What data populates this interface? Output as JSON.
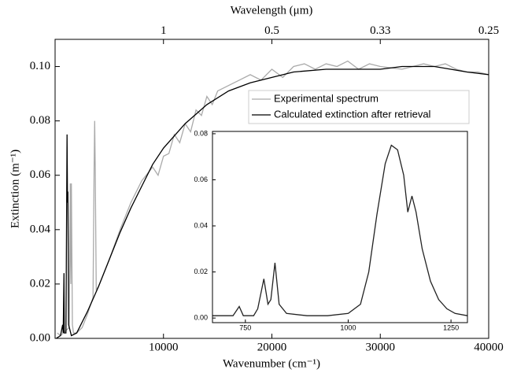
{
  "chart_data": [
    {
      "type": "line",
      "xlabel": "Wavenumber (cm⁻¹)",
      "ylabel": "Extinction (m⁻¹)",
      "x2label": "Wavelength (μm)",
      "xlim": [
        0,
        40000
      ],
      "ylim": [
        0,
        0.11
      ],
      "xticks": [
        10000,
        20000,
        30000,
        40000
      ],
      "x2ticks": [
        {
          "value": 10000,
          "label": "1"
        },
        {
          "value": 20000,
          "label": "0.5"
        },
        {
          "value": 30000,
          "label": "0.33"
        },
        {
          "value": 40000,
          "label": "0.25"
        }
      ],
      "yticks": [
        {
          "value": 0,
          "label": "0.00"
        },
        0.02,
        0.04,
        0.06,
        0.08,
        {
          "value": 0.1,
          "label": "0.10"
        }
      ],
      "legend": "upper right",
      "series": [
        {
          "name": "Experimental spectrum",
          "color": "#aaaaaa",
          "x": [
            200,
            500,
            1300,
            1400,
            1450,
            1500,
            1600,
            1700,
            2000,
            2500,
            3000,
            3500,
            3600,
            3650,
            3700,
            3800,
            4000,
            5000,
            6000,
            7000,
            8000,
            9000,
            9500,
            10000,
            10500,
            11000,
            11500,
            12000,
            12500,
            13000,
            13500,
            14000,
            14500,
            15000,
            16000,
            17000,
            18000,
            19000,
            20000,
            21000,
            22000,
            23000,
            24000,
            25000,
            26000,
            27000,
            28000,
            29000,
            30000,
            32000,
            34000,
            35000,
            36000,
            37000,
            38000,
            39000,
            40000
          ],
          "values": [
            0.002,
            0.001,
            0.004,
            0.057,
            0.02,
            0.057,
            0.005,
            0.002,
            0.002,
            0.004,
            0.009,
            0.015,
            0.063,
            0.08,
            0.063,
            0.018,
            0.019,
            0.029,
            0.04,
            0.05,
            0.058,
            0.063,
            0.06,
            0.067,
            0.068,
            0.075,
            0.072,
            0.079,
            0.076,
            0.084,
            0.082,
            0.089,
            0.086,
            0.091,
            0.093,
            0.095,
            0.097,
            0.095,
            0.099,
            0.096,
            0.1,
            0.101,
            0.099,
            0.101,
            0.1,
            0.102,
            0.099,
            0.101,
            0.1,
            0.099,
            0.101,
            0.1,
            0.101,
            0.099,
            0.098,
            0.098,
            0.097
          ]
        },
        {
          "name": "Calculated extinction after retrieval",
          "color": "#000000",
          "x": [
            100,
            500,
            700,
            750,
            820,
            850,
            1000,
            1100,
            1150,
            1180,
            1250,
            1500,
            2000,
            3000,
            4000,
            5000,
            6000,
            7000,
            8000,
            9000,
            10000,
            12000,
            14000,
            16000,
            18000,
            20000,
            22000,
            25000,
            28000,
            30000,
            32000,
            35000,
            38000,
            40000
          ],
          "values": [
            0,
            0.001,
            0.005,
            0.002,
            0.024,
            0.002,
            0.002,
            0.075,
            0.05,
            0.054,
            0.005,
            0.001,
            0.002,
            0.01,
            0.019,
            0.029,
            0.039,
            0.048,
            0.056,
            0.064,
            0.07,
            0.079,
            0.086,
            0.091,
            0.094,
            0.096,
            0.098,
            0.099,
            0.099,
            0.099,
            0.1,
            0.1,
            0.098,
            0.097
          ]
        }
      ]
    },
    {
      "type": "line",
      "xlim": [
        670,
        1290
      ],
      "ylim": [
        -0.002,
        0.081
      ],
      "xticks": [
        750,
        1000,
        1250
      ],
      "yticks": [
        {
          "value": 0,
          "label": "0.00"
        },
        0.02,
        0.04,
        0.06,
        0.08
      ],
      "series": [
        {
          "color": "#222222",
          "x": [
            670,
            700,
            720,
            735,
            745,
            770,
            780,
            795,
            805,
            812,
            822,
            832,
            850,
            900,
            950,
            1000,
            1030,
            1050,
            1070,
            1090,
            1105,
            1120,
            1135,
            1145,
            1155,
            1165,
            1180,
            1200,
            1220,
            1240,
            1260,
            1290
          ],
          "values": [
            0.001,
            0.001,
            0.001,
            0.005,
            0.001,
            0.001,
            0.004,
            0.017,
            0.006,
            0.008,
            0.024,
            0.006,
            0.002,
            0.001,
            0.001,
            0.002,
            0.006,
            0.02,
            0.045,
            0.067,
            0.075,
            0.073,
            0.062,
            0.046,
            0.053,
            0.046,
            0.03,
            0.016,
            0.008,
            0.004,
            0.002,
            0.001
          ]
        }
      ]
    }
  ]
}
